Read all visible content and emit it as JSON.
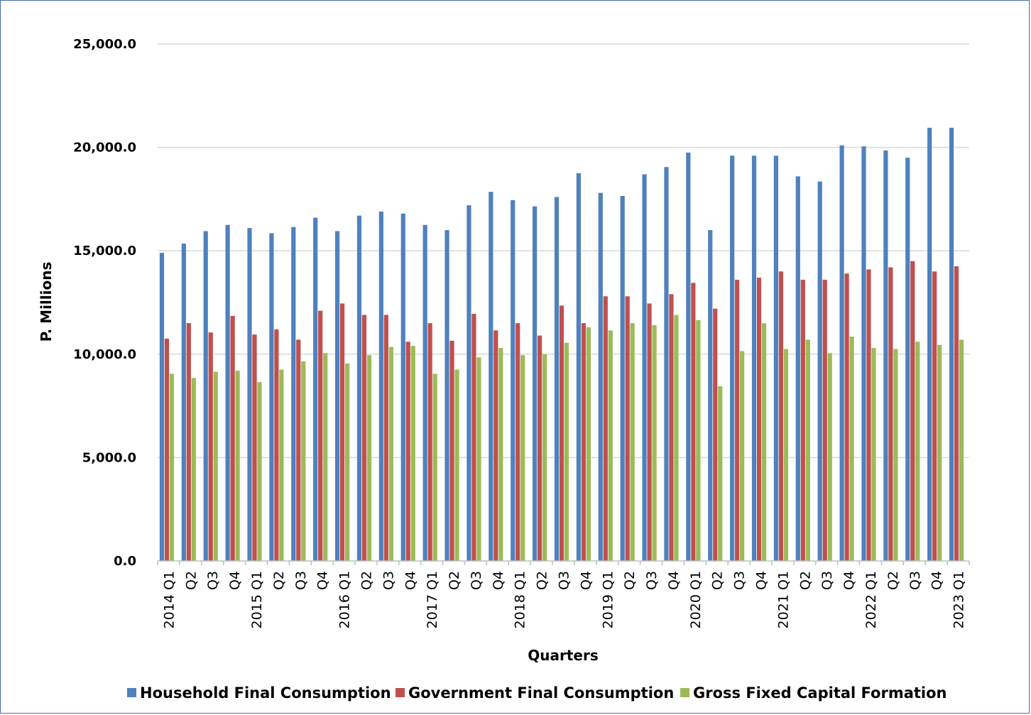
{
  "chart_data": {
    "type": "bar",
    "title": "",
    "xlabel": "Quarters",
    "ylabel": "P. Millions",
    "ylim": [
      0,
      25000
    ],
    "yticks": [
      "0.0",
      "5,000.0",
      "10,000.0",
      "15,000.0",
      "20,000.0",
      "25,000.0"
    ],
    "grid": true,
    "legend_position": "bottom",
    "categories": [
      "2014 Q1",
      "Q2",
      "Q3",
      "Q4",
      "2015 Q1",
      "Q2",
      "Q3",
      "Q4",
      "2016 Q1",
      "Q2",
      "Q3",
      "Q4",
      "2017 Q1",
      "Q2",
      "Q3",
      "Q4",
      "2018 Q1",
      "Q2",
      "Q3",
      "Q4",
      "2019 Q1",
      "Q2",
      "Q3",
      "Q4",
      "2020 Q1",
      "Q2",
      "Q3",
      "Q4",
      "2021 Q1",
      "Q2",
      "Q3",
      "Q4",
      "2022 Q1",
      "Q2",
      "Q3",
      "Q4",
      "2023 Q1"
    ],
    "series": [
      {
        "name": "Household Final Consumption",
        "color": "#4f81bd",
        "values": [
          14900,
          15350,
          15950,
          16250,
          16100,
          15850,
          16150,
          16600,
          15950,
          16700,
          16900,
          16800,
          16250,
          16000,
          17200,
          17850,
          17450,
          17150,
          17600,
          18750,
          17800,
          17650,
          18700,
          19050,
          19750,
          16000,
          19600,
          19600,
          19600,
          18600,
          18350,
          20100,
          20050,
          19850,
          19500,
          20950,
          20950
        ]
      },
      {
        "name": "Government Final Consumption",
        "color": "#c0504d",
        "values": [
          10750,
          11500,
          11050,
          11850,
          10950,
          11200,
          10700,
          12100,
          12450,
          11900,
          11900,
          10600,
          11500,
          10650,
          11950,
          11150,
          11500,
          10900,
          12350,
          11500,
          12800,
          12800,
          12450,
          12900,
          13450,
          12200,
          13600,
          13700,
          14000,
          13600,
          13600,
          13900,
          14100,
          14200,
          14500,
          14000,
          14250
        ]
      },
      {
        "name": "Gross Fixed Capital Formation",
        "color": "#9bbb59",
        "values": [
          9050,
          8850,
          9150,
          9200,
          8650,
          9250,
          9650,
          10050,
          9550,
          9950,
          10350,
          10400,
          9050,
          9250,
          9850,
          10300,
          9950,
          10000,
          10550,
          11300,
          11150,
          11500,
          11400,
          11900,
          11650,
          8450,
          10150,
          11500,
          10250,
          10700,
          10050,
          10850,
          10300,
          10250,
          10600,
          10450,
          10700
        ]
      }
    ]
  }
}
